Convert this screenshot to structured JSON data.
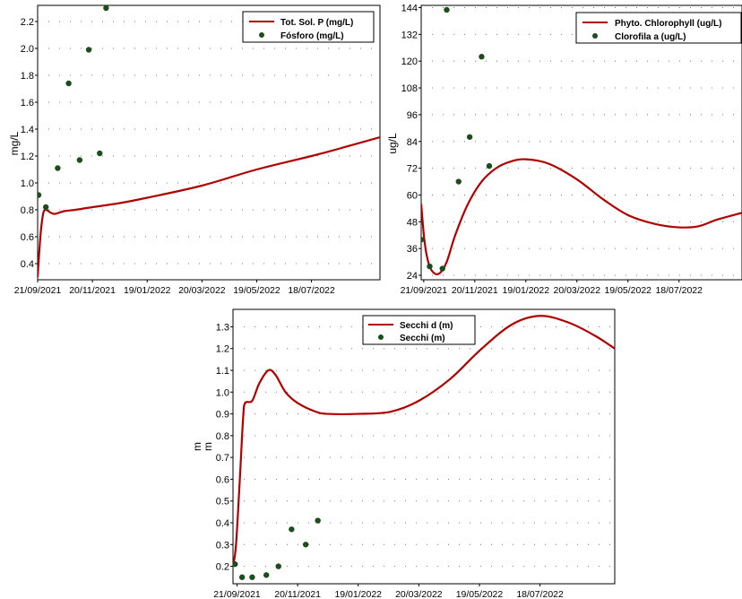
{
  "chart_data": [
    {
      "type": "line",
      "ylabel": "mg/L",
      "ylim": [
        0.28,
        2.32
      ],
      "yticks": [
        "0.4",
        "0.6",
        "0.8",
        "1.0",
        "1.2",
        "1.4",
        "1.6",
        "1.8",
        "2.0",
        "2.2"
      ],
      "xticks": [
        "21/09/2021",
        "20/11/2021",
        "19/01/2022",
        "20/03/2022",
        "19/05/2022",
        "18/07/2022"
      ],
      "x_range": [
        "2021-09-21",
        "2022-10-01"
      ],
      "grid": "dotted",
      "legend_position": "top-right",
      "series": [
        {
          "name": "Tot. Sol. P (mg/L)",
          "kind": "line",
          "color": "#b00000",
          "points": [
            [
              "2021-09-21",
              0.3
            ],
            [
              "2021-09-24",
              0.6
            ],
            [
              "2021-09-27",
              0.77
            ],
            [
              "2021-09-30",
              0.8
            ],
            [
              "2021-10-05",
              0.78
            ],
            [
              "2021-10-10",
              0.77
            ],
            [
              "2021-10-20",
              0.79
            ],
            [
              "2021-11-01",
              0.8
            ],
            [
              "2021-11-20",
              0.82
            ],
            [
              "2021-12-20",
              0.85
            ],
            [
              "2022-01-19",
              0.89
            ],
            [
              "2022-03-20",
              0.98
            ],
            [
              "2022-05-19",
              1.1
            ],
            [
              "2022-07-18",
              1.2
            ],
            [
              "2022-08-20",
              1.26
            ],
            [
              "2022-10-01",
              1.34
            ]
          ]
        },
        {
          "name": "Fósforo (mg/L)",
          "kind": "scatter",
          "color": "#1d4d1d",
          "points": [
            [
              "2021-09-22",
              0.91
            ],
            [
              "2021-09-30",
              0.82
            ],
            [
              "2021-10-13",
              1.11
            ],
            [
              "2021-10-25",
              1.74
            ],
            [
              "2021-11-06",
              1.17
            ],
            [
              "2021-11-16",
              1.99
            ],
            [
              "2021-11-28",
              1.22
            ],
            [
              "2021-12-05",
              2.3
            ]
          ]
        }
      ]
    },
    {
      "type": "line",
      "ylabel": "ug/L",
      "ylim": [
        22,
        145
      ],
      "yticks": [
        "24",
        "36",
        "48",
        "60",
        "72",
        "84",
        "96",
        "108",
        "120",
        "132",
        "144"
      ],
      "xticks": [
        "21/09/2021",
        "20/11/2021",
        "19/01/2022",
        "20/03/2022",
        "19/05/2022",
        "18/07/2022"
      ],
      "x_range": [
        "2021-09-18",
        "2022-09-30"
      ],
      "grid": "dotted",
      "legend_position": "top-right",
      "series": [
        {
          "name": "Phyto. Chlorophyll (ug/L)",
          "kind": "line",
          "color": "#b00000",
          "points": [
            [
              "2021-09-18",
              56
            ],
            [
              "2021-09-22",
              39
            ],
            [
              "2021-09-27",
              29
            ],
            [
              "2021-10-03",
              25
            ],
            [
              "2021-10-10",
              25
            ],
            [
              "2021-10-18",
              30
            ],
            [
              "2021-10-28",
              42
            ],
            [
              "2021-11-12",
              56
            ],
            [
              "2021-11-28",
              66
            ],
            [
              "2021-12-15",
              72
            ],
            [
              "2022-01-01",
              75
            ],
            [
              "2022-01-19",
              76
            ],
            [
              "2022-02-15",
              74
            ],
            [
              "2022-03-20",
              67
            ],
            [
              "2022-04-20",
              58
            ],
            [
              "2022-05-19",
              51
            ],
            [
              "2022-06-20",
              47
            ],
            [
              "2022-07-18",
              45.5
            ],
            [
              "2022-08-10",
              46
            ],
            [
              "2022-09-01",
              49
            ],
            [
              "2022-09-30",
              52
            ]
          ]
        },
        {
          "name": "Clorofila a (ug/L)",
          "kind": "scatter",
          "color": "#1d4d1d",
          "points": [
            [
              "2021-09-18",
              40
            ],
            [
              "2021-09-28",
              28
            ],
            [
              "2021-10-13",
              27
            ],
            [
              "2021-10-18",
              143
            ],
            [
              "2021-11-01",
              66
            ],
            [
              "2021-11-14",
              86
            ],
            [
              "2021-11-28",
              122
            ],
            [
              "2021-12-07",
              73
            ]
          ]
        }
      ]
    },
    {
      "type": "line",
      "ylabel": "m",
      "ylim": [
        0.12,
        1.38
      ],
      "yticks": [
        "0.2",
        "0.3",
        "0.4",
        "0.5",
        "0.6",
        "0.7",
        "0.8",
        "0.9",
        "1.0",
        "1.1",
        "1.2",
        "1.3"
      ],
      "xticks": [
        "21/09/2021",
        "20/11/2021",
        "19/01/2022",
        "20/03/2022",
        "19/05/2022",
        "18/07/2022"
      ],
      "x_range": [
        "2021-09-17",
        "2022-09-30"
      ],
      "grid": "dotted",
      "legend_position": "top-left",
      "series": [
        {
          "name": "Secchi d (m)",
          "kind": "line",
          "color": "#b00000",
          "points": [
            [
              "2021-09-17",
              0.2
            ],
            [
              "2021-09-20",
              0.3
            ],
            [
              "2021-09-24",
              0.62
            ],
            [
              "2021-09-27",
              0.88
            ],
            [
              "2021-09-29",
              0.95
            ],
            [
              "2021-10-06",
              0.96
            ],
            [
              "2021-10-13",
              1.04
            ],
            [
              "2021-10-22",
              1.1
            ],
            [
              "2021-10-29",
              1.08
            ],
            [
              "2021-11-08",
              1.0
            ],
            [
              "2021-11-20",
              0.95
            ],
            [
              "2021-12-08",
              0.91
            ],
            [
              "2021-12-20",
              0.9
            ],
            [
              "2022-01-19",
              0.9
            ],
            [
              "2022-02-20",
              0.91
            ],
            [
              "2022-03-20",
              0.96
            ],
            [
              "2022-04-20",
              1.06
            ],
            [
              "2022-05-19",
              1.19
            ],
            [
              "2022-06-20",
              1.31
            ],
            [
              "2022-07-18",
              1.35
            ],
            [
              "2022-08-15",
              1.32
            ],
            [
              "2022-09-10",
              1.26
            ],
            [
              "2022-09-30",
              1.2
            ]
          ]
        },
        {
          "name": "Secchi (m)",
          "kind": "scatter",
          "color": "#1d4d1d",
          "points": [
            [
              "2021-09-19",
              0.21
            ],
            [
              "2021-09-26",
              0.15
            ],
            [
              "2021-10-06",
              0.15
            ],
            [
              "2021-10-20",
              0.16
            ],
            [
              "2021-11-01",
              0.2
            ],
            [
              "2021-11-14",
              0.37
            ],
            [
              "2021-11-28",
              0.3
            ],
            [
              "2021-12-10",
              0.41
            ]
          ]
        }
      ]
    }
  ]
}
